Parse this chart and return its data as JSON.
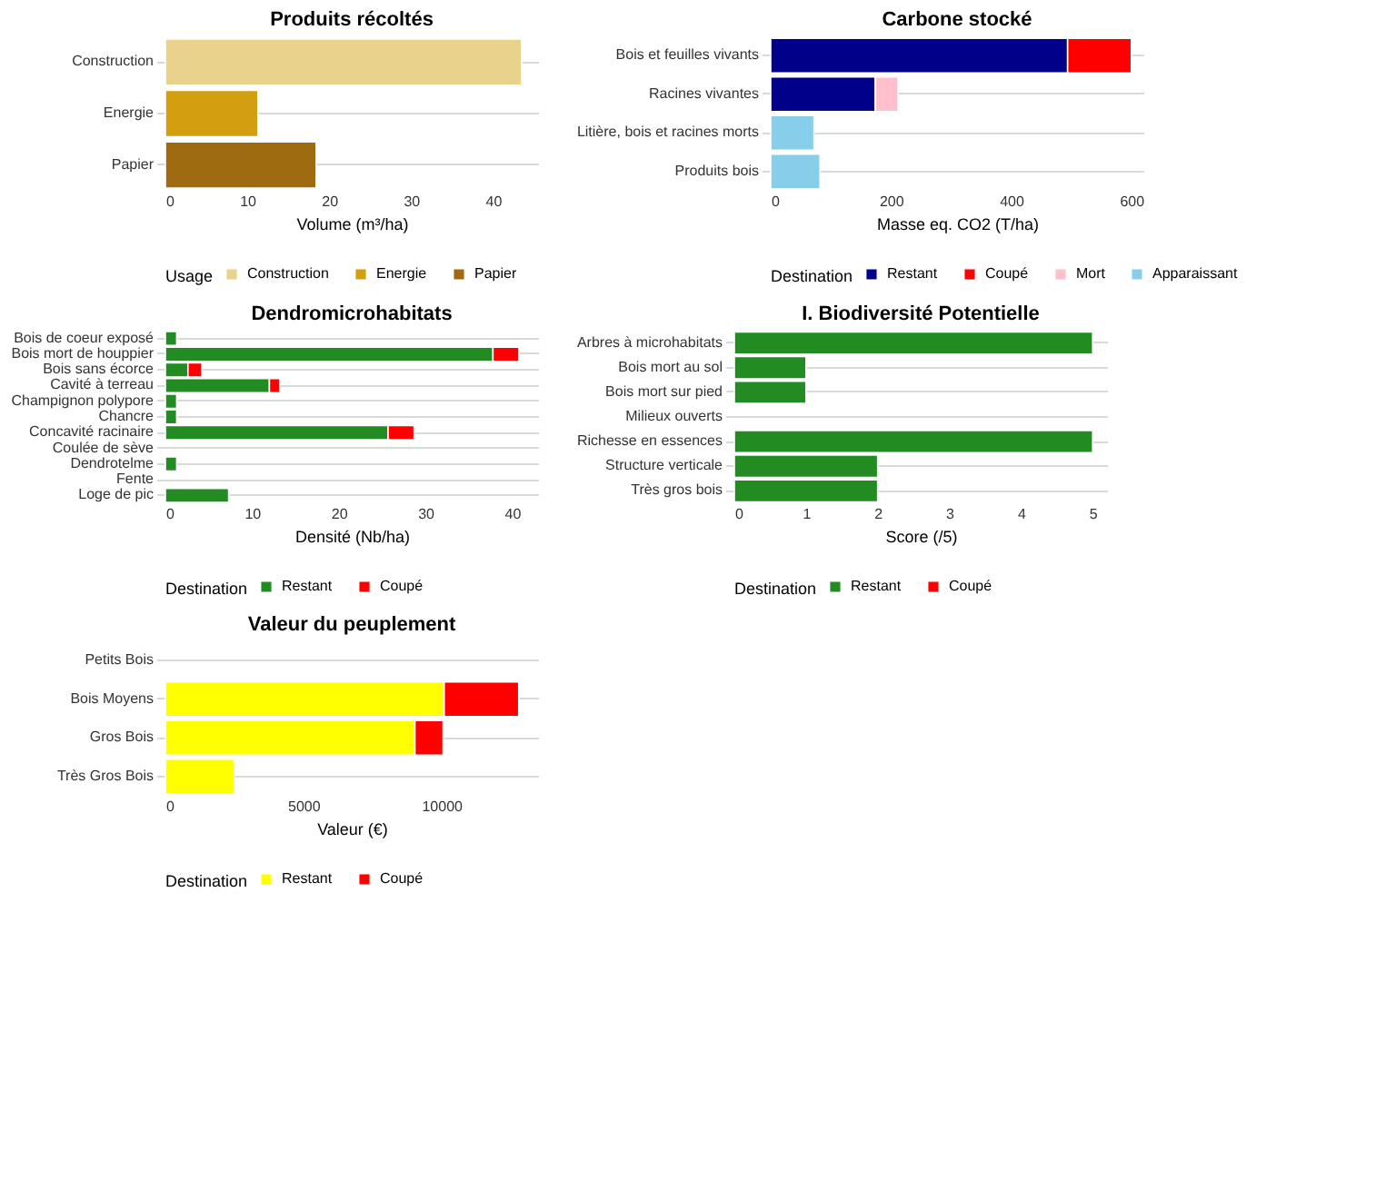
{
  "chart_data": [
    {
      "type": "bar",
      "orientation": "horizontal",
      "stacked": true,
      "title": "Produits récoltés",
      "xlabel": "Volume (m³/ha)",
      "legend_title": "Usage",
      "legend": "bottom",
      "grid": "y",
      "categories": [
        "Construction",
        "Energie",
        "Papier"
      ],
      "series": [
        {
          "name": "Construction",
          "color": "#e9d28b",
          "values": [
            43.5,
            null,
            null
          ]
        },
        {
          "name": "Energie",
          "color": "#d39e10",
          "values": [
            null,
            11.3,
            null
          ]
        },
        {
          "name": "Papier",
          "color": "#9e6b10",
          "values": [
            null,
            null,
            18.4
          ]
        }
      ],
      "xlim": [
        0,
        45.5
      ],
      "xticks": [
        0,
        10,
        20,
        30,
        40
      ]
    },
    {
      "type": "bar",
      "orientation": "horizontal",
      "stacked": true,
      "title": "Carbone stocké",
      "xlabel": "Masse eq. CO2 (T/ha)",
      "legend_title": "Destination",
      "legend": "bottom",
      "grid": "y",
      "categories": [
        "Bois et feuilles vivants",
        "Racines vivantes",
        "Litière, bois et racines morts",
        "Produits bois"
      ],
      "series": [
        {
          "name": "Restant",
          "color": "#00008b",
          "values": [
            494,
            174,
            null,
            null
          ]
        },
        {
          "name": "Coupé",
          "color": "#ff0000",
          "values": [
            106,
            null,
            null,
            null
          ]
        },
        {
          "name": "Mort",
          "color": "#ffc0cb",
          "values": [
            null,
            38,
            null,
            null
          ]
        },
        {
          "name": "Apparaissant",
          "color": "#87ceeb",
          "values": [
            null,
            null,
            72,
            82
          ]
        }
      ],
      "xlim": [
        0,
        620
      ],
      "xticks": [
        0,
        200,
        400,
        600
      ]
    },
    {
      "type": "bar",
      "orientation": "horizontal",
      "stacked": true,
      "title": "Dendromicrohabitats",
      "xlabel": "Densité (Nb/ha)",
      "legend_title": "Destination",
      "legend": "bottom",
      "grid": "y",
      "categories": [
        "Bois de coeur exposé",
        "Bois mort de houppier",
        "Bois sans écorce",
        "Cavité à terreau",
        "Champignon polypore",
        "Chancre",
        "Concavité racinaire",
        "Coulée de sève",
        "Dendrotelme",
        "Fente",
        "Loge de pic"
      ],
      "series": [
        {
          "name": "Restant",
          "color": "#228b22",
          "values": [
            1.3,
            37.8,
            2.6,
            12.0,
            1.3,
            1.3,
            25.7,
            null,
            1.3,
            null,
            7.3
          ]
        },
        {
          "name": "Coupé",
          "color": "#ff0000",
          "values": [
            null,
            3.0,
            1.6,
            1.2,
            null,
            null,
            3.0,
            null,
            null,
            null,
            null
          ]
        }
      ],
      "xlim": [
        0,
        43
      ],
      "xticks": [
        0,
        10,
        20,
        30,
        40
      ]
    },
    {
      "type": "bar",
      "orientation": "horizontal",
      "stacked": true,
      "title": "I. Biodiversité Potentielle",
      "xlabel": "Score (/5)",
      "legend_title": "Destination",
      "legend": "bottom",
      "grid": "y",
      "categories": [
        "Arbres à microhabitats",
        "Bois mort au sol",
        "Bois mort sur pied",
        "Milieux ouverts",
        "Richesse en essences",
        "Structure verticale",
        "Très gros bois"
      ],
      "series": [
        {
          "name": "Restant",
          "color": "#228b22",
          "values": [
            5,
            1,
            1,
            null,
            5,
            2,
            2
          ]
        },
        {
          "name": "Coupé",
          "color": "#ff0000",
          "values": [
            null,
            null,
            null,
            null,
            null,
            null,
            null
          ]
        }
      ],
      "xlim": [
        0,
        5.2
      ],
      "xticks": [
        0,
        1,
        2,
        3,
        4,
        5
      ]
    },
    {
      "type": "bar",
      "orientation": "horizontal",
      "stacked": true,
      "title": "Valeur du peuplement",
      "xlabel": "Valeur (€)",
      "legend_title": "Destination",
      "legend": "bottom",
      "grid": "y",
      "categories": [
        "Petits Bois",
        "Bois Moyens",
        "Gros Bois",
        "Très Gros Bois"
      ],
      "series": [
        {
          "name": "Restant",
          "color": "#ffff00",
          "values": [
            null,
            10100,
            9040,
            2490
          ]
        },
        {
          "name": "Coupé",
          "color": "#ff0000",
          "values": [
            null,
            2700,
            1020,
            null
          ]
        }
      ],
      "xlim": [
        0,
        13500
      ],
      "xticks": [
        0,
        5000,
        10000
      ]
    }
  ]
}
